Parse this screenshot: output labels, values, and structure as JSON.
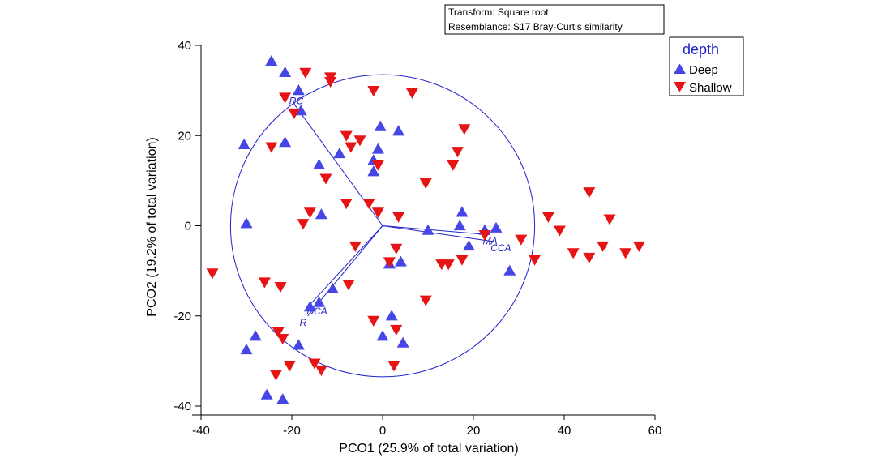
{
  "info_box": {
    "line1": "Transform: Square root",
    "line2": "Resemblance: S17 Bray-Curtis similarity"
  },
  "chart_data": {
    "type": "scatter",
    "title": "",
    "xlabel": "PCO1 (25.9% of total variation)",
    "ylabel": "PCO2 (19.2% of total variation)",
    "xlim": [
      -40,
      60
    ],
    "ylim": [
      -40,
      40
    ],
    "xticks": [
      -40,
      -20,
      0,
      20,
      40,
      60
    ],
    "yticks": [
      -40,
      -20,
      0,
      20,
      40
    ],
    "grid": false,
    "legend": {
      "title": "depth",
      "placement": "top-right"
    },
    "colors": {
      "Deep": "#4646e6",
      "Shallow": "#e61414",
      "vectors": "#2222cc"
    },
    "series": [
      {
        "name": "Deep",
        "marker": "triangle-up",
        "points": [
          [
            -24.5,
            36.5
          ],
          [
            -21.5,
            34
          ],
          [
            -18.5,
            30
          ],
          [
            -18,
            25.5
          ],
          [
            -30.5,
            18
          ],
          [
            -21.5,
            18.5
          ],
          [
            -14,
            13.5
          ],
          [
            -9.5,
            16
          ],
          [
            -2,
            14.5
          ],
          [
            -2,
            12
          ],
          [
            -1,
            17
          ],
          [
            -0.5,
            22
          ],
          [
            3.5,
            21
          ],
          [
            -30,
            0.5
          ],
          [
            -13.5,
            2.5
          ],
          [
            10,
            -1
          ],
          [
            17.5,
            3
          ],
          [
            17,
            0
          ],
          [
            22.5,
            -1
          ],
          [
            25,
            -0.5
          ],
          [
            19,
            -4.5
          ],
          [
            28,
            -10
          ],
          [
            1.5,
            -8.5
          ],
          [
            4,
            -8
          ],
          [
            -11,
            -14
          ],
          [
            -14,
            -17
          ],
          [
            -16,
            -18
          ],
          [
            2,
            -20
          ],
          [
            0,
            -24.5
          ],
          [
            4.5,
            -26
          ],
          [
            -28,
            -24.5
          ],
          [
            -30,
            -27.5
          ],
          [
            -18.5,
            -26.5
          ],
          [
            -25.5,
            -37.5
          ],
          [
            -22,
            -38.5
          ]
        ]
      },
      {
        "name": "Shallow",
        "marker": "triangle-down",
        "points": [
          [
            -17,
            34
          ],
          [
            -11.5,
            33
          ],
          [
            -11.5,
            32
          ],
          [
            -2,
            30
          ],
          [
            6.5,
            29.5
          ],
          [
            -21.5,
            28.5
          ],
          [
            -19.5,
            25
          ],
          [
            18,
            21.5
          ],
          [
            -8,
            20
          ],
          [
            -5,
            19
          ],
          [
            -7,
            17.5
          ],
          [
            -24.5,
            17.5
          ],
          [
            16.5,
            16.5
          ],
          [
            -1,
            13.5
          ],
          [
            15.5,
            13.5
          ],
          [
            -12.5,
            10.5
          ],
          [
            9.5,
            9.5
          ],
          [
            -16,
            3
          ],
          [
            -8,
            5
          ],
          [
            -3,
            5
          ],
          [
            -1,
            3
          ],
          [
            3.5,
            2
          ],
          [
            -17.5,
            0.5
          ],
          [
            36.5,
            2
          ],
          [
            45.5,
            7.5
          ],
          [
            50,
            1.5
          ],
          [
            39,
            -1
          ],
          [
            22.5,
            -2
          ],
          [
            30.5,
            -3
          ],
          [
            33.5,
            -7.5
          ],
          [
            42,
            -6
          ],
          [
            45.5,
            -7
          ],
          [
            48.5,
            -4.5
          ],
          [
            53.5,
            -6
          ],
          [
            56.5,
            -4.5
          ],
          [
            -6,
            -4.5
          ],
          [
            3,
            -5
          ],
          [
            1.5,
            -8
          ],
          [
            13,
            -8.5
          ],
          [
            14.5,
            -8.5
          ],
          [
            17.5,
            -7.5
          ],
          [
            -37.5,
            -10.5
          ],
          [
            -26,
            -12.5
          ],
          [
            -22.5,
            -13.5
          ],
          [
            -7.5,
            -13
          ],
          [
            9.5,
            -16.5
          ],
          [
            -2,
            -21
          ],
          [
            3,
            -23
          ],
          [
            -23,
            -23.5
          ],
          [
            -22,
            -25
          ],
          [
            -15,
            -30.5
          ],
          [
            -13.5,
            -32
          ],
          [
            -20.5,
            -31
          ],
          [
            -23.5,
            -33
          ],
          [
            2.5,
            -31
          ]
        ]
      }
    ],
    "circle": {
      "center": [
        0,
        0
      ],
      "radius": 33.5
    },
    "vectors": [
      {
        "label": "RC",
        "end": [
          -19.5,
          27
        ]
      },
      {
        "label": "MA",
        "end": [
          23.5,
          -2
        ]
      },
      {
        "label": "CCA",
        "end": [
          24.5,
          -3.5
        ]
      },
      {
        "label": "DCA",
        "end": [
          -16,
          -17.5
        ]
      },
      {
        "label": "R",
        "end": [
          -16.5,
          -20
        ]
      }
    ]
  }
}
